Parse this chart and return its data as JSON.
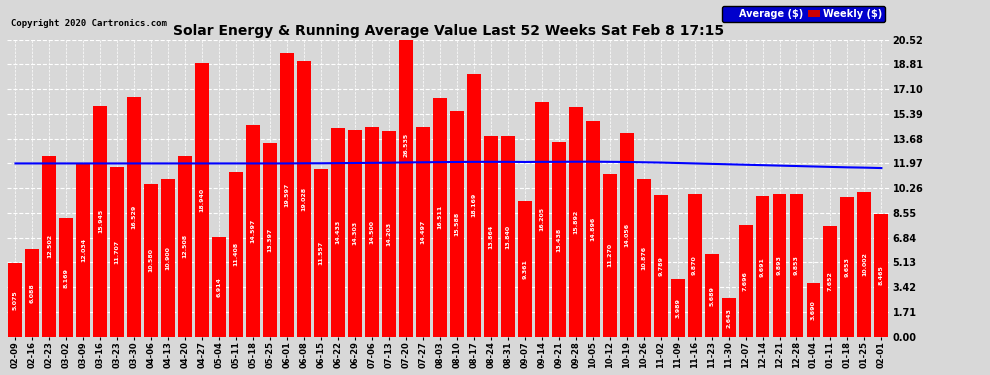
{
  "title": "Solar Energy & Running Average Value Last 52 Weeks Sat Feb 8 17:15",
  "copyright": "Copyright 2020 Cartronics.com",
  "bar_color": "#FF0000",
  "avg_line_color": "#0000FF",
  "background_color": "#D8D8D8",
  "grid_color": "#FFFFFF",
  "yticks": [
    0.0,
    1.71,
    3.42,
    5.13,
    6.84,
    8.55,
    10.26,
    11.97,
    13.68,
    15.39,
    17.1,
    18.81,
    20.52
  ],
  "categories": [
    "02-09",
    "02-16",
    "02-23",
    "03-02",
    "03-09",
    "03-16",
    "03-23",
    "03-30",
    "04-06",
    "04-13",
    "04-20",
    "04-27",
    "05-04",
    "05-11",
    "05-18",
    "05-25",
    "06-01",
    "06-08",
    "06-15",
    "06-22",
    "06-29",
    "07-06",
    "07-13",
    "07-20",
    "07-27",
    "08-03",
    "08-10",
    "08-17",
    "08-24",
    "08-31",
    "09-07",
    "09-14",
    "09-21",
    "09-28",
    "10-05",
    "10-12",
    "10-19",
    "10-26",
    "11-02",
    "11-09",
    "11-16",
    "11-23",
    "11-30",
    "12-07",
    "12-14",
    "12-21",
    "12-28",
    "01-04",
    "01-11",
    "01-18",
    "01-25",
    "02-01"
  ],
  "values": [
    5.075,
    6.088,
    12.502,
    8.169,
    12.034,
    15.945,
    11.707,
    16.529,
    10.58,
    10.9,
    12.508,
    18.94,
    6.914,
    11.408,
    14.597,
    13.397,
    19.597,
    19.028,
    11.557,
    14.433,
    14.303,
    14.5,
    14.203,
    26.535,
    14.497,
    16.511,
    15.588,
    18.169,
    13.864,
    13.84,
    9.361,
    16.205,
    13.438,
    15.892,
    14.896,
    11.27,
    14.056,
    10.876,
    9.789,
    3.989,
    9.87,
    5.689,
    2.643,
    7.696,
    9.691,
    9.893,
    9.853,
    3.69,
    7.652,
    9.653,
    10.002,
    8.465
  ],
  "avg_values": [
    11.97,
    11.97,
    11.97,
    11.97,
    11.97,
    11.97,
    11.97,
    11.97,
    11.97,
    11.97,
    11.97,
    11.97,
    11.97,
    11.97,
    11.97,
    11.97,
    11.97,
    11.98,
    11.98,
    11.99,
    12.0,
    12.01,
    12.02,
    12.04,
    12.05,
    12.06,
    12.07,
    12.08,
    12.08,
    12.08,
    12.07,
    12.08,
    12.08,
    12.09,
    12.09,
    12.08,
    12.07,
    12.05,
    12.03,
    12.0,
    11.97,
    11.94,
    11.91,
    11.88,
    11.85,
    11.82,
    11.79,
    11.76,
    11.73,
    11.7,
    11.68,
    11.65
  ],
  "legend_avg_bg": "#0000CC",
  "legend_weekly_bg": "#CC0000",
  "value_label_fontsize": 4.5,
  "bar_width": 0.82,
  "ylim_max": 20.52
}
